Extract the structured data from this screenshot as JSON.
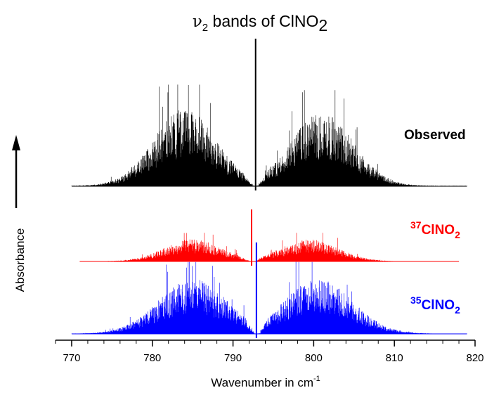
{
  "chart_data": {
    "type": "line",
    "title": "ν₂ bands of ClNO₂",
    "title_parts": {
      "symbol": "ν",
      "sub1": "2",
      "middle": " bands of ClNO",
      "sub2": "2"
    },
    "xlabel": "Wavenumber in cm",
    "xlabel_sup": "-1",
    "ylabel": "Absorbance",
    "xlim": [
      768,
      820
    ],
    "xticks": [
      770,
      780,
      790,
      800,
      810,
      820
    ],
    "xtick_labels": [
      "770",
      "780",
      "790",
      "800",
      "810",
      "820"
    ],
    "grid": false,
    "series": [
      {
        "name": "Observed",
        "label_parts": {
          "main": "Observed"
        },
        "color": "#000000",
        "x_range": [
          770,
          819
        ],
        "center": 792.8,
        "left_lobe": {
          "peak_x": 784,
          "peak_height": 0.55,
          "max_spike": 0.72
        },
        "right_lobe": {
          "peak_x": 801,
          "peak_height": 0.52,
          "max_spike": 0.68
        },
        "central_spike": {
          "x": 792.8,
          "height": 1.0
        }
      },
      {
        "name": "37ClNO2",
        "label_parts": {
          "sup": "37",
          "main": "ClNO",
          "sub": "2"
        },
        "color": "#ff0000",
        "x_range": [
          771,
          818
        ],
        "center": 792.4,
        "left_lobe": {
          "peak_x": 785,
          "peak_height": 0.35,
          "max_spike": 0.45
        },
        "right_lobe": {
          "peak_x": 799.5,
          "peak_height": 0.35,
          "max_spike": 0.45
        },
        "central_spike": {
          "x": 792.3,
          "height": 1.0
        }
      },
      {
        "name": "35ClNO2",
        "label_parts": {
          "sup": "35",
          "main": "ClNO",
          "sub": "2"
        },
        "color": "#0000ff",
        "x_range": [
          770,
          819
        ],
        "center": 793.0,
        "left_lobe": {
          "peak_x": 785,
          "peak_height": 0.65,
          "max_spike": 0.85
        },
        "right_lobe": {
          "peak_x": 800.5,
          "peak_height": 0.65,
          "max_spike": 0.85
        },
        "central_spike": {
          "x": 792.9,
          "height": 1.0
        }
      }
    ]
  }
}
